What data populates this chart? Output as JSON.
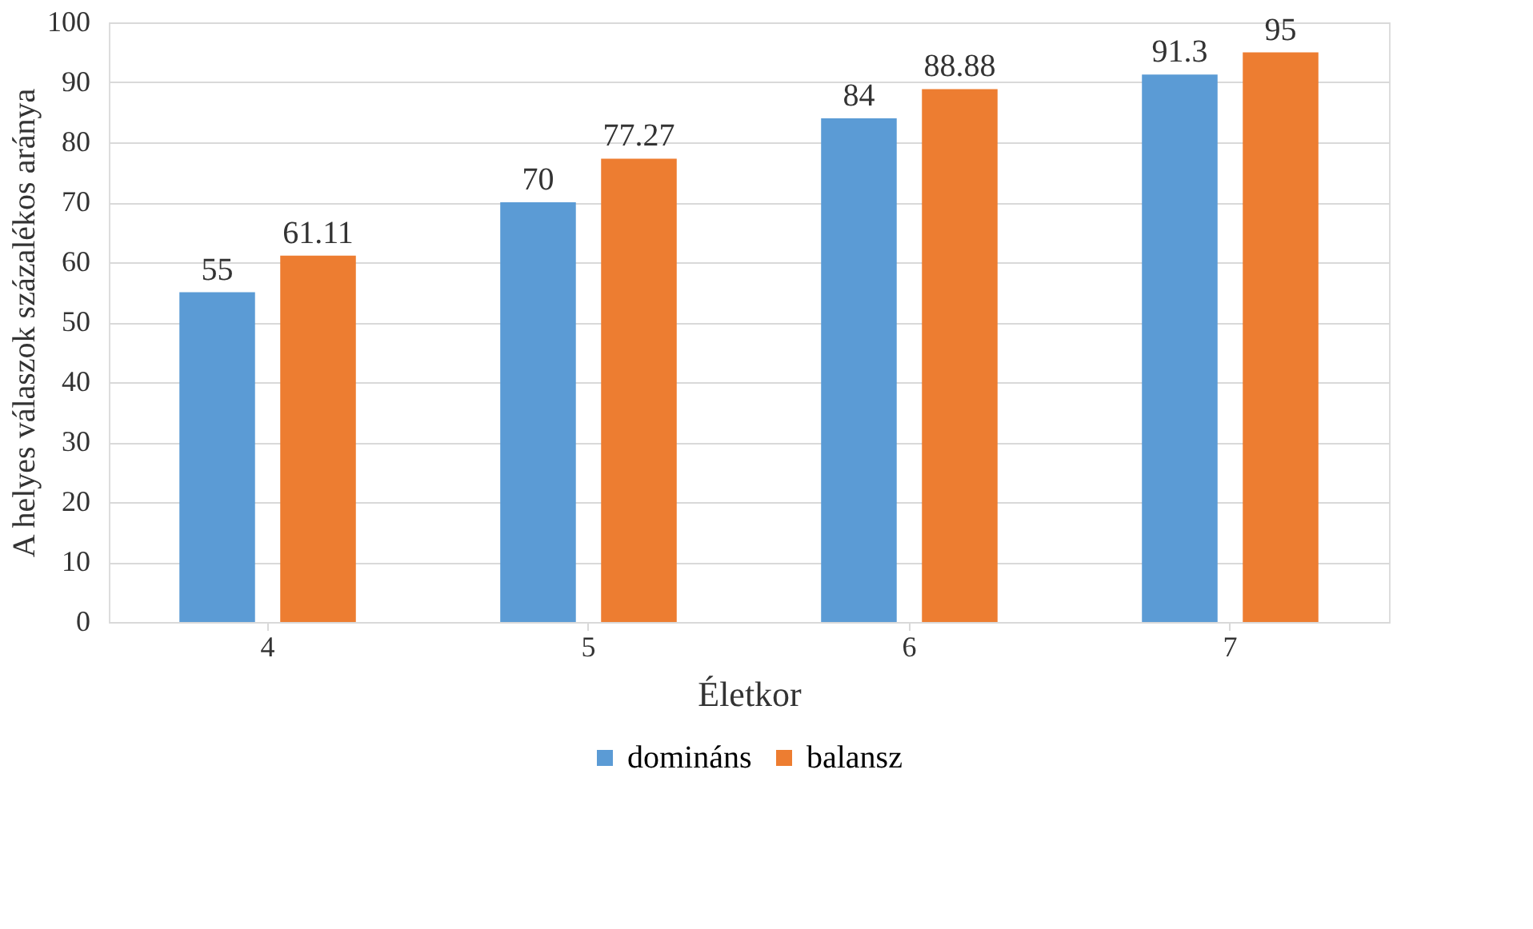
{
  "chart_data": {
    "type": "bar",
    "xlabel": "Életkor",
    "ylabel": "A helyes válaszok százalékos aránya",
    "categories": [
      "4",
      "5",
      "6",
      "7"
    ],
    "series": [
      {
        "name": "domináns",
        "color": "#5b9bd5",
        "values": [
          55,
          70,
          84,
          91.3
        ]
      },
      {
        "name": "balansz",
        "color": "#ed7d31",
        "values": [
          61.11,
          77.27,
          88.88,
          95
        ]
      }
    ],
    "ylim": [
      0,
      100
    ],
    "yticks": [
      0,
      10,
      20,
      30,
      40,
      50,
      60,
      70,
      80,
      90,
      100
    ],
    "grid": "y",
    "legend": "bottom",
    "data_labels": true
  }
}
